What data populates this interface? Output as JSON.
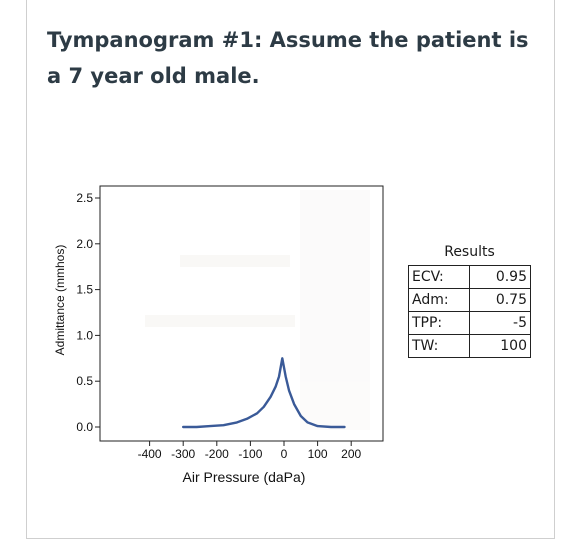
{
  "question": {
    "title": "Tympanogram #1: Assume the patient is a 7 year old male."
  },
  "chart_data": {
    "type": "line",
    "xlabel": "Air Pressure (daPa)",
    "ylabel": "Admittance (mmhos)",
    "xlim": [
      -400,
      200
    ],
    "ylim": [
      0,
      2.5
    ],
    "x_ticks": [
      "-400",
      "-300",
      "-200",
      "-100",
      "0",
      "100",
      "200"
    ],
    "y_ticks": [
      "0.0",
      "0.5",
      "1.0",
      "1.5",
      "2.0",
      "2.5"
    ],
    "series": [
      {
        "color": "#3a5a98",
        "x": [
          -300,
          -260,
          -220,
          -180,
          -140,
          -110,
          -80,
          -60,
          -40,
          -25,
          -15,
          -5,
          5,
          15,
          30,
          50,
          70,
          100,
          140,
          180
        ],
        "y": [
          0.0,
          0.0,
          0.01,
          0.02,
          0.05,
          0.09,
          0.15,
          0.22,
          0.33,
          0.44,
          0.55,
          0.75,
          0.55,
          0.4,
          0.25,
          0.12,
          0.05,
          0.01,
          0.0,
          0.0
        ]
      }
    ]
  },
  "results": {
    "header": "Results",
    "rows": [
      {
        "label": "ECV:",
        "value": "0.95"
      },
      {
        "label": "Adm:",
        "value": "0.75"
      },
      {
        "label": "TPP:",
        "value": "-5"
      },
      {
        "label": "TW:",
        "value": "100"
      }
    ]
  }
}
